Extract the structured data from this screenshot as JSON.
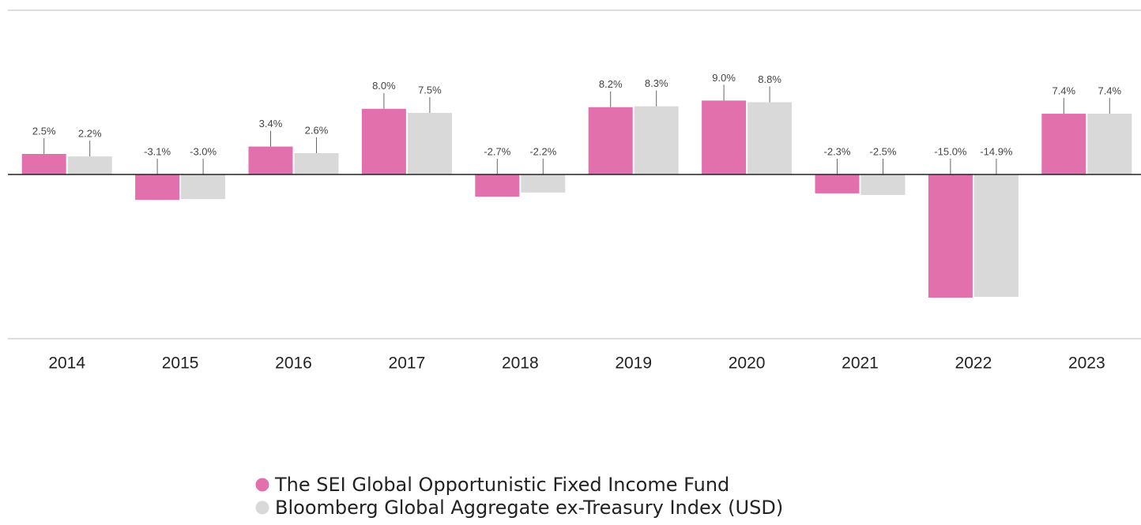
{
  "chart_data": {
    "type": "bar",
    "categories": [
      "2014",
      "2015",
      "2016",
      "2017",
      "2018",
      "2019",
      "2020",
      "2021",
      "2022",
      "2023"
    ],
    "series": [
      {
        "name": "The SEI Global Opportunistic Fixed Income Fund",
        "color": "#e270ad",
        "values": [
          2.5,
          -3.1,
          3.4,
          8.0,
          -2.7,
          8.2,
          9.0,
          -2.3,
          -15.0,
          7.4
        ],
        "value_labels": [
          "2.5%",
          "-3.1%",
          "3.4%",
          "8.0%",
          "-2.7%",
          "8.2%",
          "9.0%",
          "-2.3%",
          "-15.0%",
          "7.4%"
        ]
      },
      {
        "name": "Bloomberg Global Aggregate ex-Treasury Index (USD)",
        "color": "#d9d9d9",
        "values": [
          2.2,
          -3.0,
          2.6,
          7.5,
          -2.2,
          8.3,
          8.8,
          -2.5,
          -14.9,
          7.4
        ],
        "value_labels": [
          "2.2%",
          "-3.0%",
          "2.6%",
          "7.5%",
          "-2.2%",
          "8.3%",
          "8.8%",
          "-2.5%",
          "-14.9%",
          "7.4%"
        ]
      }
    ],
    "ylim": [
      -20,
      20
    ]
  }
}
